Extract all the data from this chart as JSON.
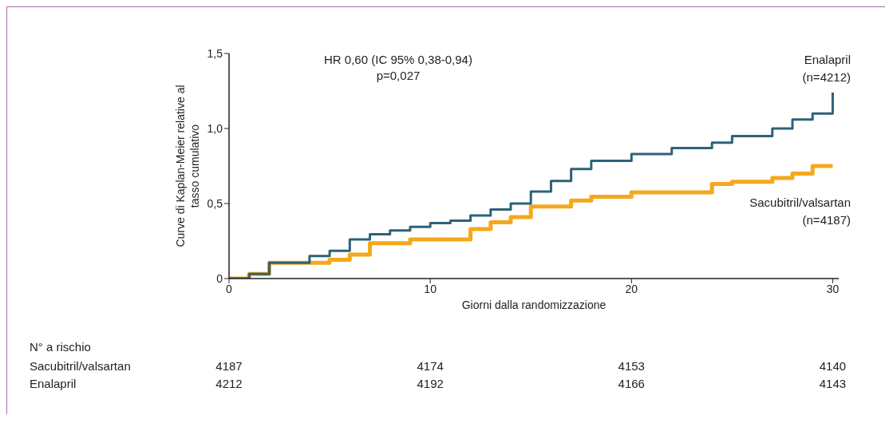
{
  "chart_data": {
    "type": "step",
    "xlabel": "Giorni dalla randomizzazione",
    "ylabel": "Curve di Kaplan-Meier relative al tasso cumulativo",
    "xlim": [
      0,
      30.3
    ],
    "ylim": [
      0,
      1.5
    ],
    "xticks": [
      0,
      10,
      20,
      30
    ],
    "yticks": [
      0,
      {
        "value": 0.5,
        "label": "0,5"
      },
      {
        "value": 1,
        "label": "1,0"
      },
      {
        "value": 1.5,
        "label": "1,5"
      }
    ],
    "legend": false,
    "marker": "none",
    "line_style": "solid",
    "series": [
      {
        "name": "Enalapril (n=4212)",
        "color": "#2e6278",
        "x": [
          0,
          1,
          2,
          4,
          5,
          6,
          7,
          8,
          9,
          10,
          11,
          12,
          13,
          14,
          15,
          16,
          17,
          18,
          20,
          22,
          24,
          25,
          27,
          28,
          29,
          30
        ],
        "values": [
          0,
          0.03,
          0.105,
          0.15,
          0.185,
          0.26,
          0.295,
          0.32,
          0.345,
          0.37,
          0.385,
          0.42,
          0.46,
          0.5,
          0.58,
          0.65,
          0.73,
          0.785,
          0.83,
          0.87,
          0.905,
          0.95,
          1.0,
          1.06,
          1.1,
          1.24
        ]
      },
      {
        "name": "Sacubitril/valsartan (n=4187)",
        "color": "#f5a81c",
        "x": [
          0,
          1,
          2,
          5,
          6,
          7,
          9,
          12,
          13,
          14,
          15,
          17,
          18,
          20,
          24,
          25,
          27,
          28,
          29,
          30
        ],
        "values": [
          0,
          0.03,
          0.105,
          0.125,
          0.16,
          0.235,
          0.26,
          0.33,
          0.375,
          0.41,
          0.48,
          0.52,
          0.545,
          0.575,
          0.63,
          0.645,
          0.67,
          0.7,
          0.75,
          0.75
        ]
      }
    ],
    "annotations": [
      "HR 0,60 (IC 95% 0,38-0,94)",
      "p=0,027",
      "N° a rischio",
      "Sacubitril/valsartan",
      "4187",
      "4174",
      "4153",
      "4140",
      "Enalapril",
      "4212",
      "4192",
      "4166",
      "4143"
    ]
  }
}
